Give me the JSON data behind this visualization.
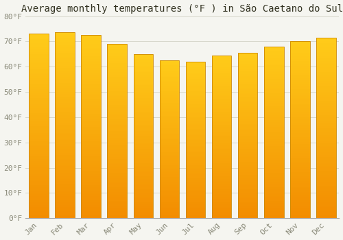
{
  "title": "Average monthly temperatures (°F ) in São Caetano do Sul",
  "months": [
    "Jan",
    "Feb",
    "Mar",
    "Apr",
    "May",
    "Jun",
    "Jul",
    "Aug",
    "Sep",
    "Oct",
    "Nov",
    "Dec"
  ],
  "values": [
    73,
    73.5,
    72.5,
    69,
    65,
    62.5,
    62,
    64.5,
    65.5,
    68,
    70,
    71.5
  ],
  "bar_color_main": "#FFA500",
  "ylim": [
    0,
    80
  ],
  "yticks": [
    0,
    10,
    20,
    30,
    40,
    50,
    60,
    70,
    80
  ],
  "ytick_labels": [
    "0°F",
    "10°F",
    "20°F",
    "30°F",
    "40°F",
    "50°F",
    "60°F",
    "70°F",
    "80°F"
  ],
  "background_color": "#f5f5f0",
  "grid_color": "#d8d8cc",
  "title_fontsize": 10,
  "tick_fontsize": 8,
  "bar_edge_color": "#cc8800"
}
